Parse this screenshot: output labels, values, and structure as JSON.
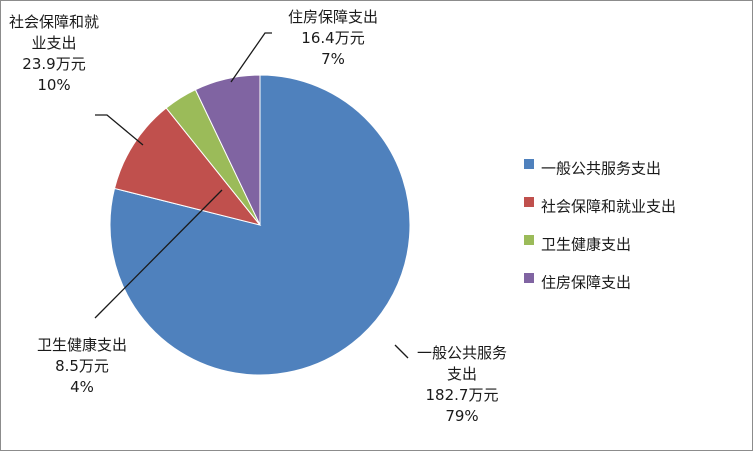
{
  "chart_data": {
    "type": "pie",
    "title": "",
    "legend_position": "right",
    "slices": [
      {
        "name": "一般公共服务支出",
        "label_lines": [
          "一般公共服务",
          "支出"
        ],
        "value_text": "182.7万元",
        "value": 182.7,
        "percent_text": "79%",
        "color": "#4f81bd"
      },
      {
        "name": "社会保障和就业支出",
        "label_lines": [
          "社会保障和就",
          "业支出"
        ],
        "value_text": "23.9万元",
        "value": 23.9,
        "percent_text": "10%",
        "color": "#c0504d"
      },
      {
        "name": "卫生健康支出",
        "label_lines": [
          "卫生健康支出"
        ],
        "value_text": "8.5万元",
        "value": 8.5,
        "percent_text": "4%",
        "color": "#9bbb59"
      },
      {
        "name": "住房保障支出",
        "label_lines": [
          "住房保障支出"
        ],
        "value_text": "16.4万元",
        "value": 16.4,
        "percent_text": "7%",
        "color": "#8064a2"
      }
    ]
  }
}
